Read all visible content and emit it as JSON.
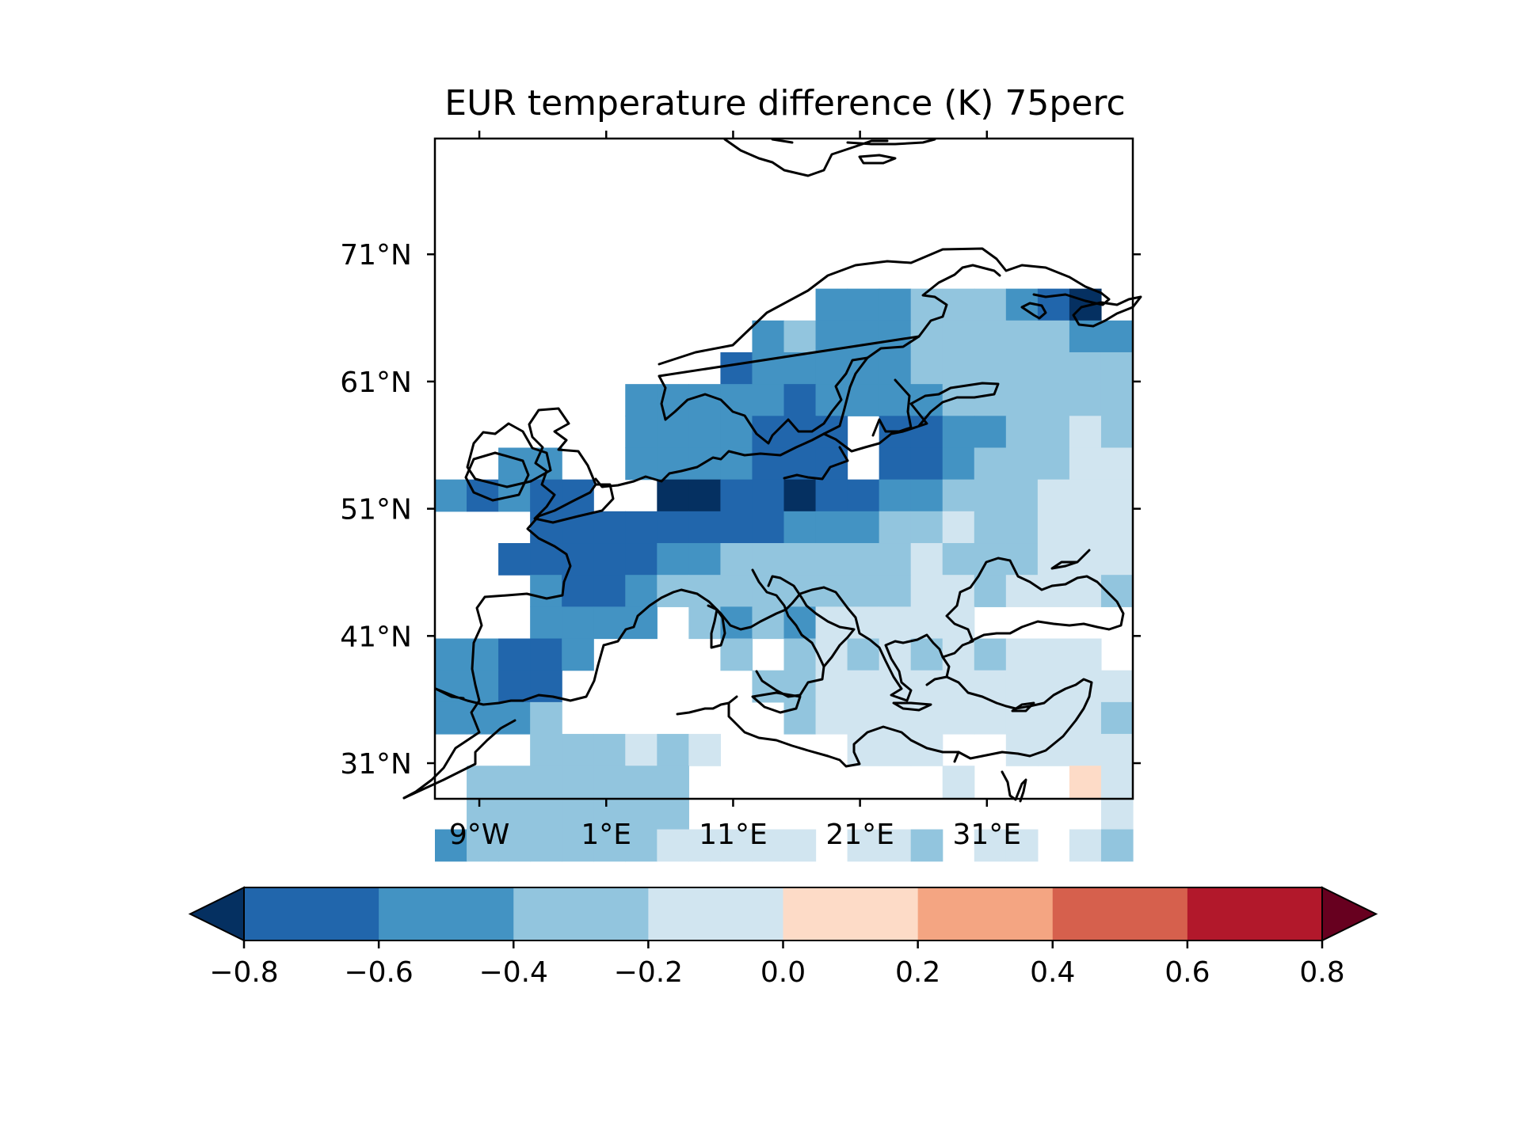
{
  "chart_data": {
    "type": "heatmap",
    "title": "EUR temperature difference (K) 75perc",
    "region": "Europe",
    "x_ticks": [
      "9°W",
      "1°E",
      "11°E",
      "21°E",
      "31°E"
    ],
    "x_tick_values": [
      -9,
      1,
      11,
      21,
      31
    ],
    "y_ticks": [
      "71°N",
      "61°N",
      "51°N",
      "41°N",
      "31°N"
    ],
    "y_tick_values": [
      71,
      61,
      51,
      41,
      31
    ],
    "xlim": [
      -12.5,
      42.5
    ],
    "ylim": [
      28.2,
      80.1
    ],
    "grid": false,
    "cell_lon_size": 2.5,
    "cell_lat_size": 2.5,
    "grid_origin_lon": -12.5,
    "grid_origin_lat": 68.3,
    "cells_note": "rows run north to south, columns west to east; value is the colorbar bin center in K, null = no data",
    "cells": [
      [
        null,
        null,
        null,
        null,
        null,
        null,
        null,
        null,
        null,
        null,
        null,
        null,
        -0.5,
        -0.5,
        -0.5,
        -0.3,
        -0.3,
        -0.3,
        -0.5,
        -0.7,
        -0.9,
        null
      ],
      [
        null,
        null,
        null,
        null,
        null,
        null,
        null,
        null,
        null,
        null,
        -0.5,
        -0.3,
        -0.5,
        -0.5,
        -0.5,
        -0.3,
        -0.3,
        -0.3,
        -0.3,
        -0.3,
        -0.5,
        -0.5
      ],
      [
        null,
        null,
        null,
        null,
        null,
        null,
        null,
        null,
        null,
        -0.7,
        -0.5,
        -0.5,
        -0.5,
        -0.5,
        -0.5,
        -0.3,
        -0.3,
        -0.3,
        -0.3,
        -0.3,
        -0.3,
        -0.3
      ],
      [
        null,
        null,
        null,
        null,
        null,
        null,
        -0.5,
        -0.5,
        -0.5,
        -0.5,
        -0.5,
        -0.7,
        -0.5,
        -0.5,
        -0.5,
        -0.5,
        -0.3,
        -0.3,
        -0.3,
        -0.3,
        -0.3,
        -0.3
      ],
      [
        null,
        null,
        null,
        null,
        null,
        null,
        -0.5,
        -0.5,
        -0.5,
        -0.5,
        -0.7,
        -0.7,
        -0.7,
        null,
        -0.7,
        -0.7,
        -0.5,
        -0.5,
        -0.3,
        -0.3,
        -0.1,
        -0.3
      ],
      [
        null,
        null,
        -0.5,
        -0.5,
        null,
        null,
        -0.5,
        -0.5,
        -0.5,
        -0.5,
        -0.7,
        -0.7,
        -0.7,
        null,
        -0.7,
        -0.7,
        -0.5,
        -0.3,
        -0.3,
        -0.3,
        -0.1,
        -0.1
      ],
      [
        -0.5,
        -0.7,
        -0.5,
        -0.7,
        -0.7,
        null,
        null,
        -0.9,
        -0.9,
        -0.7,
        -0.7,
        -0.9,
        -0.7,
        -0.7,
        -0.5,
        -0.5,
        -0.3,
        -0.3,
        -0.3,
        -0.1,
        -0.1,
        -0.1
      ],
      [
        null,
        null,
        null,
        -0.7,
        -0.7,
        -0.7,
        -0.7,
        -0.7,
        -0.7,
        -0.7,
        -0.7,
        -0.5,
        -0.5,
        -0.5,
        -0.3,
        -0.3,
        -0.1,
        -0.3,
        -0.3,
        -0.1,
        -0.1,
        -0.1
      ],
      [
        null,
        null,
        -0.7,
        -0.7,
        -0.7,
        -0.7,
        -0.7,
        -0.5,
        -0.5,
        -0.3,
        -0.3,
        -0.3,
        -0.3,
        -0.3,
        -0.3,
        -0.1,
        -0.3,
        -0.3,
        -0.3,
        -0.1,
        -0.1,
        -0.1
      ],
      [
        null,
        null,
        null,
        -0.5,
        -0.7,
        -0.7,
        -0.5,
        -0.3,
        -0.3,
        -0.3,
        -0.3,
        -0.3,
        -0.3,
        -0.3,
        -0.3,
        -0.1,
        -0.1,
        -0.3,
        -0.1,
        -0.1,
        -0.1,
        -0.3
      ],
      [
        null,
        null,
        null,
        -0.5,
        -0.5,
        -0.5,
        -0.5,
        null,
        -0.3,
        -0.5,
        -0.3,
        -0.5,
        -0.1,
        -0.1,
        -0.1,
        -0.1,
        -0.1,
        null,
        null,
        null,
        null,
        null
      ],
      [
        -0.5,
        -0.5,
        -0.7,
        -0.7,
        -0.5,
        null,
        null,
        null,
        null,
        -0.3,
        null,
        -0.3,
        -0.1,
        -0.3,
        -0.1,
        -0.3,
        -0.1,
        -0.3,
        -0.1,
        -0.1,
        -0.1,
        null
      ],
      [
        -0.5,
        -0.5,
        -0.7,
        -0.7,
        null,
        null,
        null,
        null,
        null,
        null,
        -0.3,
        -0.3,
        -0.1,
        -0.1,
        -0.1,
        -0.1,
        -0.1,
        -0.1,
        -0.1,
        -0.1,
        -0.1,
        -0.1
      ],
      [
        -0.5,
        -0.5,
        -0.5,
        -0.3,
        null,
        null,
        null,
        null,
        null,
        null,
        null,
        -0.3,
        -0.1,
        -0.1,
        -0.1,
        -0.1,
        -0.1,
        -0.1,
        -0.1,
        -0.1,
        -0.1,
        -0.3
      ],
      [
        null,
        null,
        null,
        -0.3,
        -0.3,
        -0.3,
        -0.1,
        -0.3,
        -0.1,
        null,
        null,
        null,
        null,
        -0.1,
        -0.1,
        -0.1,
        null,
        null,
        -0.1,
        -0.1,
        -0.1,
        -0.1
      ],
      [
        null,
        -0.3,
        -0.3,
        -0.3,
        -0.3,
        -0.3,
        -0.3,
        -0.3,
        null,
        null,
        null,
        null,
        null,
        null,
        null,
        null,
        -0.1,
        null,
        null,
        null,
        0.1,
        -0.1
      ],
      [
        null,
        -0.3,
        -0.3,
        -0.3,
        -0.3,
        -0.3,
        -0.3,
        -0.3,
        null,
        null,
        null,
        null,
        null,
        null,
        null,
        null,
        null,
        null,
        null,
        null,
        null,
        -0.1
      ],
      [
        -0.5,
        -0.3,
        -0.3,
        -0.3,
        -0.3,
        -0.3,
        -0.3,
        -0.1,
        -0.1,
        -0.1,
        -0.1,
        -0.1,
        null,
        -0.1,
        -0.1,
        -0.3,
        null,
        -0.1,
        -0.1,
        null,
        -0.1,
        -0.3
      ]
    ],
    "colorbar": {
      "boundaries": [
        -0.8,
        -0.6,
        -0.4,
        -0.2,
        0.0,
        0.2,
        0.4,
        0.6,
        0.8
      ],
      "tick_labels": [
        "−0.8",
        "−0.6",
        "−0.4",
        "−0.2",
        "0.0",
        "0.2",
        "0.4",
        "0.6",
        "0.8"
      ],
      "colors": [
        "#2166ac",
        "#4393c3",
        "#92c5de",
        "#d1e5f0",
        "#fddbc7",
        "#f4a582",
        "#d6604d",
        "#b2182b"
      ],
      "extend_min_color": "#053061",
      "extend_max_color": "#67001f",
      "orientation": "horizontal",
      "extend": "both"
    },
    "coastline_color": "#000000"
  }
}
